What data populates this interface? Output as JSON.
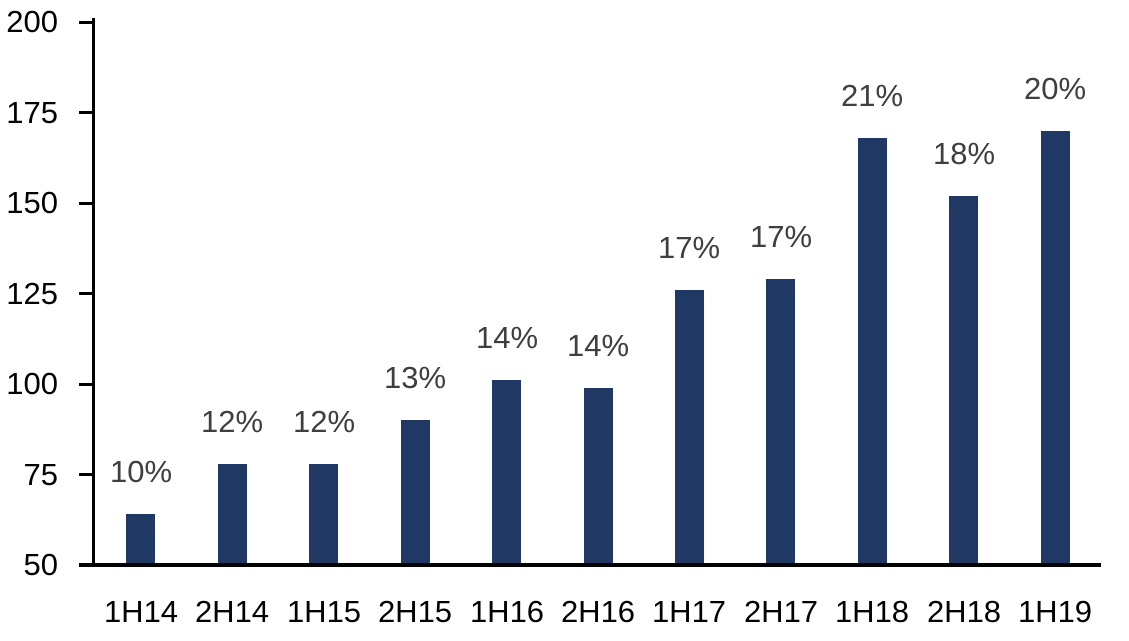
{
  "chart_data": {
    "type": "bar",
    "title": "",
    "xlabel": "",
    "ylabel": "",
    "categories": [
      "1H14",
      "2H14",
      "1H15",
      "2H15",
      "1H16",
      "2H16",
      "1H17",
      "2H17",
      "1H18",
      "2H18",
      "1H19"
    ],
    "values": [
      64,
      78,
      78,
      90,
      101,
      99,
      126,
      129,
      168,
      152,
      170
    ],
    "data_labels": [
      "10%",
      "12%",
      "12%",
      "13%",
      "14%",
      "14%",
      "17%",
      "17%",
      "21%",
      "18%",
      "20%"
    ],
    "ylim": [
      50,
      200
    ],
    "yticks": [
      50,
      75,
      100,
      125,
      150,
      175,
      200
    ],
    "grid": false,
    "legend_position": "none",
    "colors": {
      "bar": "#1F3864",
      "data_label": "#3F3F3F",
      "axis_text": "#000000",
      "axis_line": "#000000",
      "background": "#FFFFFF"
    }
  }
}
